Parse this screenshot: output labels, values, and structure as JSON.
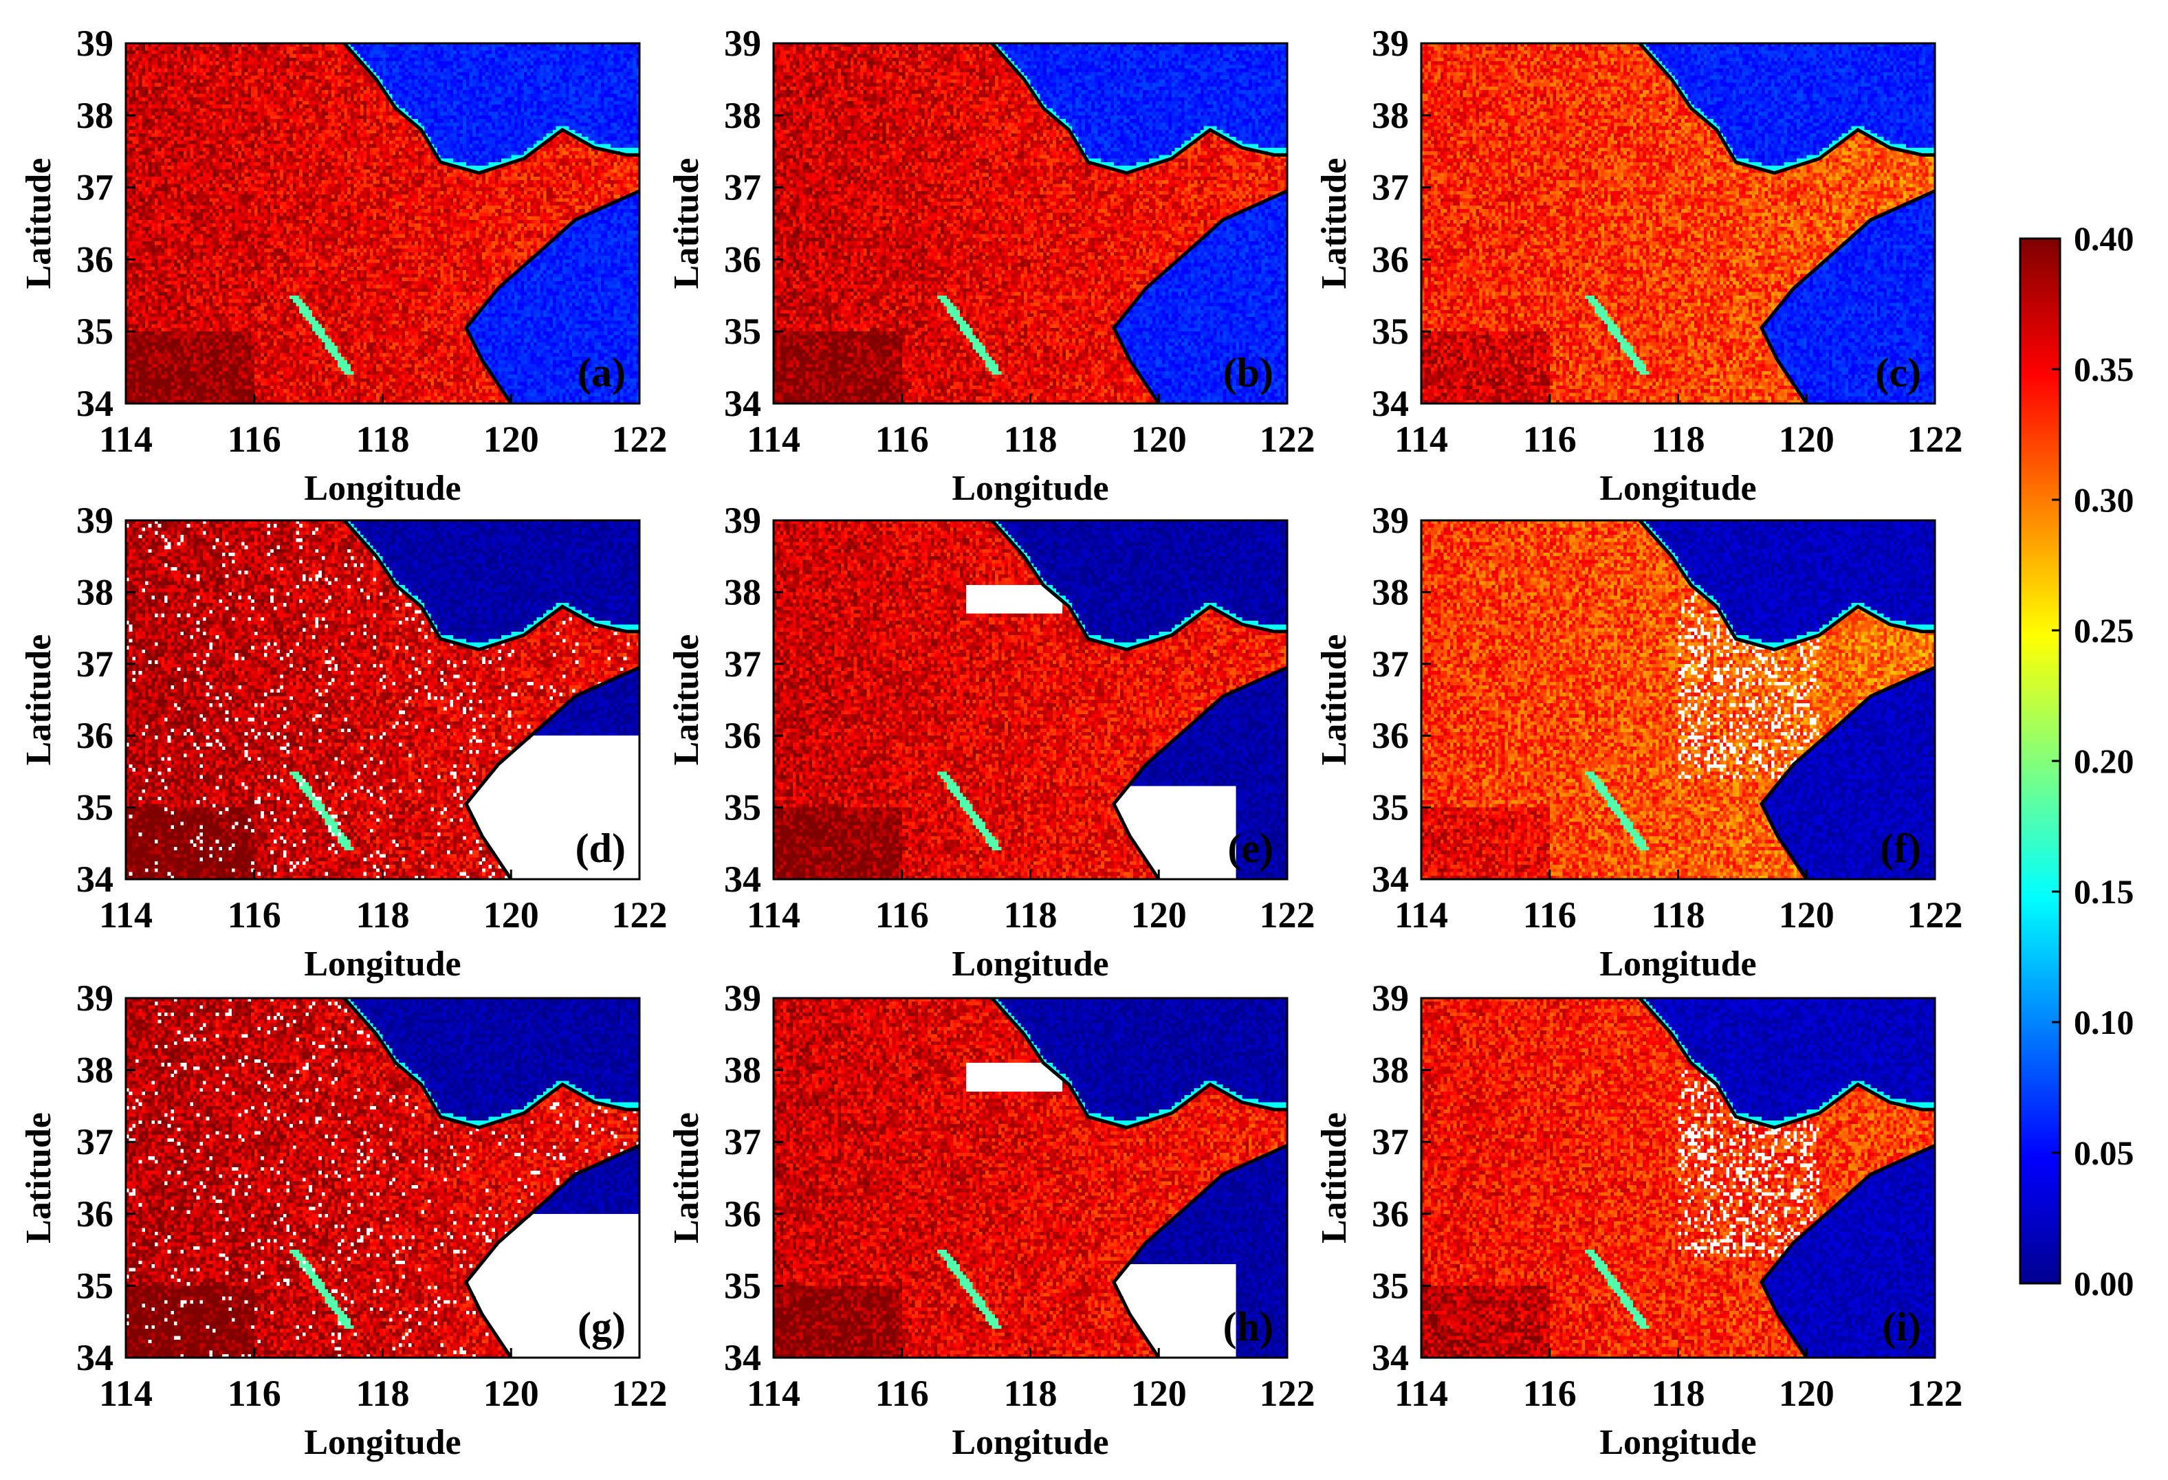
{
  "figure": {
    "colormap": "jet",
    "colors": {
      "cmap_stops": [
        "#00008f",
        "#0000ff",
        "#00ffff",
        "#ffff00",
        "#ff0000",
        "#800000"
      ],
      "missing": "#ffffff",
      "coastline": "#000000"
    }
  },
  "chart_data": {
    "type": "heatmap",
    "description_grid": "3x3 panels of gridded values over lon 114-122, lat 34-39",
    "xlabel": "Longitude",
    "ylabel": "Latitude",
    "xlim": [
      114,
      122
    ],
    "ylim": [
      34,
      39
    ],
    "xticks": [
      "114",
      "116",
      "118",
      "120",
      "122"
    ],
    "yticks": [
      "34",
      "35",
      "36",
      "37",
      "38",
      "39"
    ],
    "colorbar": {
      "min": 0.0,
      "max": 0.4,
      "ticks": [
        "0.00",
        "0.05",
        "0.10",
        "0.15",
        "0.20",
        "0.25",
        "0.30",
        "0.35",
        "0.40"
      ]
    },
    "panels": [
      {
        "tag": "(a)",
        "land_mean": 0.34,
        "sea_mean": 0.06,
        "missing": "none",
        "seed": 11
      },
      {
        "tag": "(b)",
        "land_mean": 0.34,
        "sea_mean": 0.06,
        "missing": "none",
        "seed": 23
      },
      {
        "tag": "(c)",
        "land_mean": 0.31,
        "sea_mean": 0.06,
        "missing": "none",
        "seed": 37
      },
      {
        "tag": "(d)",
        "land_mean": 0.35,
        "sea_mean": 0.01,
        "missing": "south-sea-and-scatter",
        "seed": 41
      },
      {
        "tag": "(e)",
        "land_mean": 0.34,
        "sea_mean": 0.01,
        "missing": "partial-south-sea",
        "seed": 53
      },
      {
        "tag": "(f)",
        "land_mean": 0.3,
        "sea_mean": 0.02,
        "missing": "coastal-scatter",
        "seed": 67
      },
      {
        "tag": "(g)",
        "land_mean": 0.35,
        "sea_mean": 0.01,
        "missing": "south-sea-and-scatter",
        "seed": 71
      },
      {
        "tag": "(h)",
        "land_mean": 0.34,
        "sea_mean": 0.01,
        "missing": "partial-south-sea",
        "seed": 83
      },
      {
        "tag": "(i)",
        "land_mean": 0.32,
        "sea_mean": 0.02,
        "missing": "coastal-scatter",
        "seed": 97
      }
    ]
  }
}
